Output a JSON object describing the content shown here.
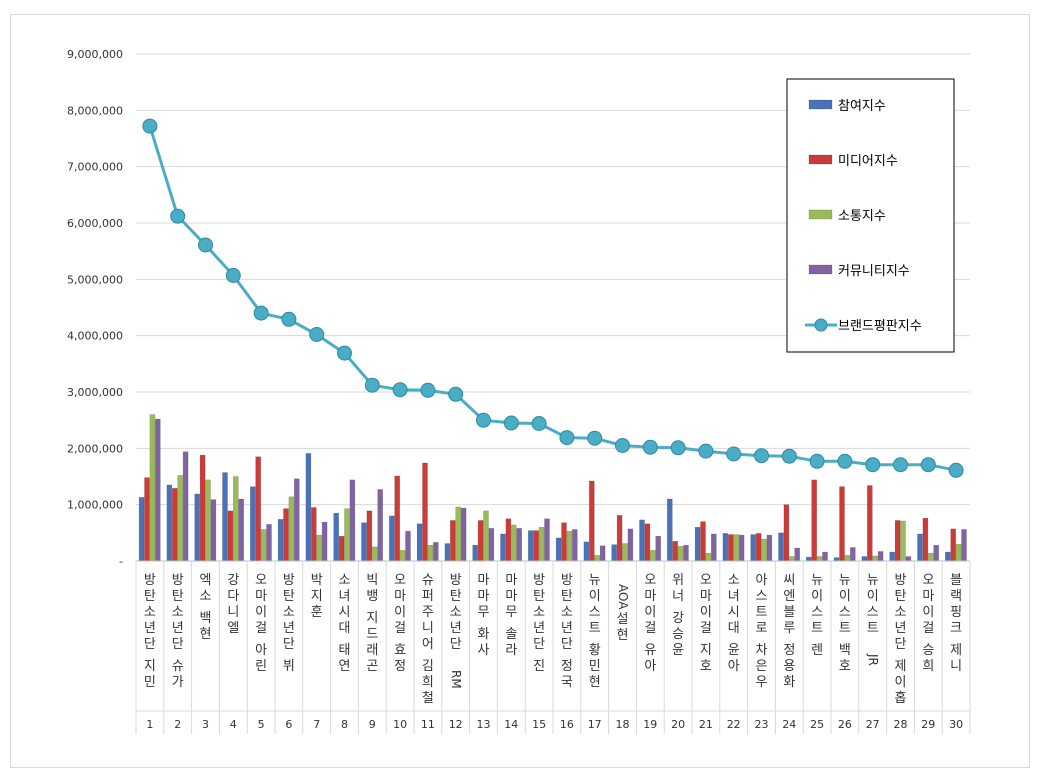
{
  "chart_data": {
    "type": "bar",
    "title": "",
    "xlabel": "",
    "ylabel": "",
    "ylim": [
      0,
      9000000
    ],
    "yticks": [
      "-",
      "1,000,000",
      "2,000,000",
      "3,000,000",
      "4,000,000",
      "5,000,000",
      "6,000,000",
      "7,000,000",
      "8,000,000",
      "9,000,000"
    ],
    "grid": true,
    "legend_position": "top-right",
    "categories": [
      "방탄소년단 지민",
      "방탄소년단 슈가",
      "엑소 백현",
      "강다니엘",
      "오마이걸 아린",
      "방탄소년단 뷔",
      "박지훈",
      "소녀시대 태연",
      "빅뱅 지드래곤",
      "오마이걸 효정",
      "슈퍼주니어 김희철",
      "방탄소년단 RM",
      "마마무 화사",
      "마마무 솔라",
      "방탄소년단 진",
      "방탄소년단 정국",
      "뉴이스트 황민현",
      "AOA 설현",
      "오마이걸 유아",
      "위너 강승윤",
      "오마이걸 지호",
      "소녀시대 윤아",
      "아스트로 차은우",
      "씨엔블루 정용화",
      "뉴이스트 렌",
      "뉴이스트 백호",
      "뉴이스트 JR",
      "방탄소년단 제이홉",
      "오마이걸 승희",
      "블랙핑크 제니"
    ],
    "ranks": [
      "1",
      "2",
      "3",
      "4",
      "5",
      "6",
      "7",
      "8",
      "9",
      "10",
      "11",
      "12",
      "13",
      "14",
      "15",
      "16",
      "17",
      "18",
      "19",
      "20",
      "21",
      "22",
      "23",
      "24",
      "25",
      "26",
      "27",
      "28",
      "29",
      "30"
    ],
    "series": [
      {
        "name": "참여지수",
        "kind": "bar",
        "color": "#4a72b8",
        "values": [
          1130000,
          1350000,
          1190000,
          1570000,
          1320000,
          740000,
          1910000,
          850000,
          680000,
          800000,
          660000,
          310000,
          280000,
          480000,
          540000,
          410000,
          340000,
          290000,
          730000,
          1100000,
          600000,
          490000,
          470000,
          500000,
          70000,
          60000,
          80000,
          160000,
          480000,
          160000
        ]
      },
      {
        "name": "미디어지수",
        "kind": "bar",
        "color": "#cc3b37",
        "values": [
          1480000,
          1290000,
          1880000,
          890000,
          1850000,
          930000,
          950000,
          440000,
          890000,
          1510000,
          1740000,
          720000,
          720000,
          750000,
          540000,
          680000,
          1420000,
          810000,
          660000,
          350000,
          700000,
          470000,
          490000,
          1000000,
          1440000,
          1320000,
          1340000,
          720000,
          760000,
          570000
        ]
      },
      {
        "name": "소통지수",
        "kind": "bar",
        "color": "#9bbb59",
        "values": [
          2600000,
          1520000,
          1440000,
          1500000,
          560000,
          1140000,
          460000,
          930000,
          250000,
          190000,
          280000,
          960000,
          890000,
          640000,
          600000,
          530000,
          100000,
          310000,
          190000,
          260000,
          140000,
          470000,
          390000,
          80000,
          80000,
          100000,
          90000,
          710000,
          140000,
          300000
        ]
      },
      {
        "name": "커뮤니티지수",
        "kind": "bar",
        "color": "#8064a2",
        "values": [
          2520000,
          1940000,
          1090000,
          1100000,
          650000,
          1460000,
          690000,
          1440000,
          1270000,
          530000,
          330000,
          940000,
          580000,
          580000,
          750000,
          560000,
          270000,
          570000,
          440000,
          280000,
          480000,
          460000,
          460000,
          230000,
          160000,
          240000,
          170000,
          80000,
          280000,
          560000
        ]
      },
      {
        "name": "브랜드평판지수",
        "kind": "line",
        "color": "#4bacc6",
        "values": [
          7720000,
          6120000,
          5610000,
          5070000,
          4400000,
          4290000,
          4020000,
          3690000,
          3120000,
          3040000,
          3030000,
          2960000,
          2500000,
          2450000,
          2440000,
          2190000,
          2180000,
          2050000,
          2020000,
          2010000,
          1950000,
          1900000,
          1870000,
          1860000,
          1770000,
          1770000,
          1710000,
          1710000,
          1710000,
          1610000
        ]
      }
    ]
  }
}
